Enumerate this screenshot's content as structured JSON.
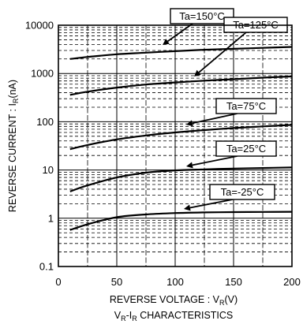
{
  "chart_data": {
    "type": "line",
    "title": "",
    "caption": "VR-IR CHARACTERISTICS",
    "xlabel": "REVERSE VOLTAGE : VR(V)",
    "ylabel": "REVERSE CURRENT : IR(nA)",
    "xlim": [
      0,
      200
    ],
    "ylim": [
      0.1,
      10000
    ],
    "yscale": "log",
    "grid": true,
    "x_ticks": [
      "0",
      "50",
      "100",
      "150",
      "200"
    ],
    "y_ticks": [
      "0.1",
      "1",
      "10",
      "100",
      "1000",
      "10000"
    ],
    "series": [
      {
        "name": "Ta=150°C",
        "x": [
          10,
          25,
          50,
          75,
          100,
          125,
          150,
          175,
          200
        ],
        "y": [
          2000,
          2200,
          2500,
          2700,
          2900,
          3100,
          3250,
          3400,
          3550
        ]
      },
      {
        "name": "Ta=125°C",
        "x": [
          10,
          25,
          50,
          75,
          100,
          125,
          150,
          175,
          200
        ],
        "y": [
          360,
          420,
          510,
          590,
          650,
          710,
          760,
          820,
          870
        ]
      },
      {
        "name": "Ta=75°C",
        "x": [
          10,
          25,
          50,
          75,
          100,
          125,
          150,
          175,
          200
        ],
        "y": [
          27,
          33,
          43,
          52,
          60,
          67,
          74,
          80,
          86
        ]
      },
      {
        "name": "Ta=25°C",
        "x": [
          10,
          25,
          50,
          75,
          100,
          125,
          150,
          175,
          200
        ],
        "y": [
          3.6,
          4.8,
          7.0,
          8.8,
          9.8,
          10.3,
          10.7,
          11.0,
          11.3
        ]
      },
      {
        "name": "Ta=-25°C",
        "x": [
          10,
          25,
          50,
          75,
          100,
          125,
          150,
          175,
          200
        ],
        "y": [
          0.57,
          0.75,
          1.05,
          1.2,
          1.28,
          1.32,
          1.34,
          1.35,
          1.36
        ]
      }
    ]
  }
}
